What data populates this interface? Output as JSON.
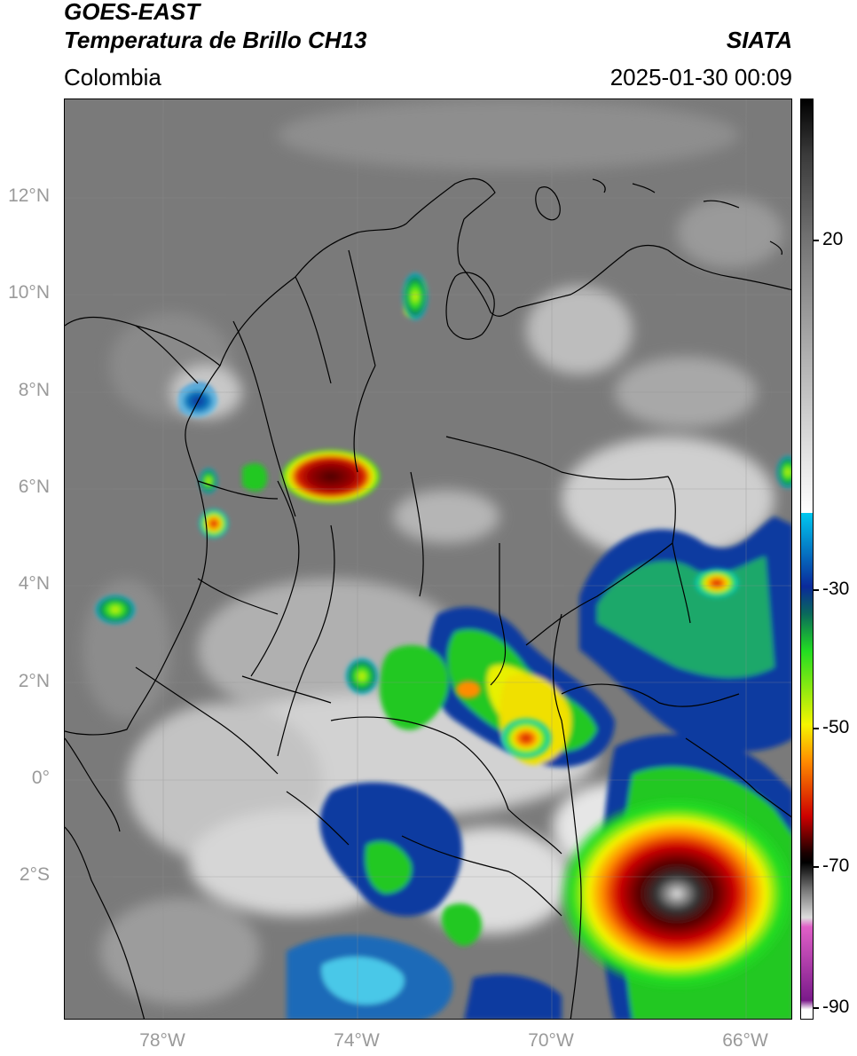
{
  "header": {
    "satellite": "GOES-EAST",
    "product": "Temperatura de Brillo CH13",
    "region": "Colombia",
    "source": "SIATA",
    "datetime": "2025-01-30 00:09"
  },
  "axes": {
    "latitude_labels": [
      "12°N",
      "10°N",
      "8°N",
      "6°N",
      "4°N",
      "2°N",
      "0°",
      "2°S"
    ],
    "longitude_labels": [
      "78°W",
      "74°W",
      "70°W",
      "66°W"
    ]
  },
  "colorbar": {
    "tick_labels": [
      "20",
      "-30",
      "-50",
      "-70",
      "-90"
    ],
    "colors": {
      "warm_gray": "#777777",
      "cyan": "#00c8f0",
      "blue": "#0a2a9a",
      "green": "#22dd22",
      "yellow": "#f5f500",
      "orange": "#ff8c00",
      "red": "#cc0000",
      "dark": "#1a0000",
      "magenta": "#e060c8",
      "purple": "#7a1a8a"
    }
  }
}
